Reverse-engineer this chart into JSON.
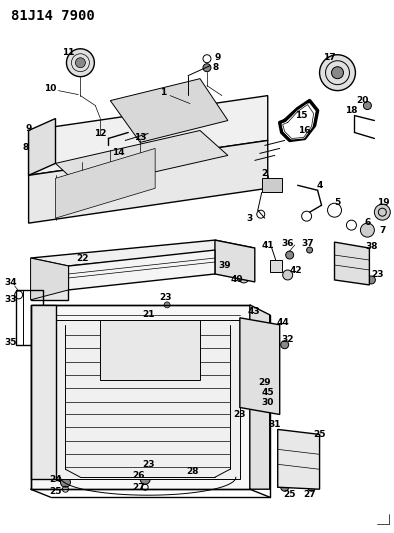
{
  "title": "81J14 7900",
  "bg": "#ffffff",
  "lc": "#000000",
  "title_fs": 10,
  "lbl_fs": 6.5,
  "fig_w": 3.94,
  "fig_h": 5.33,
  "dpi": 100
}
